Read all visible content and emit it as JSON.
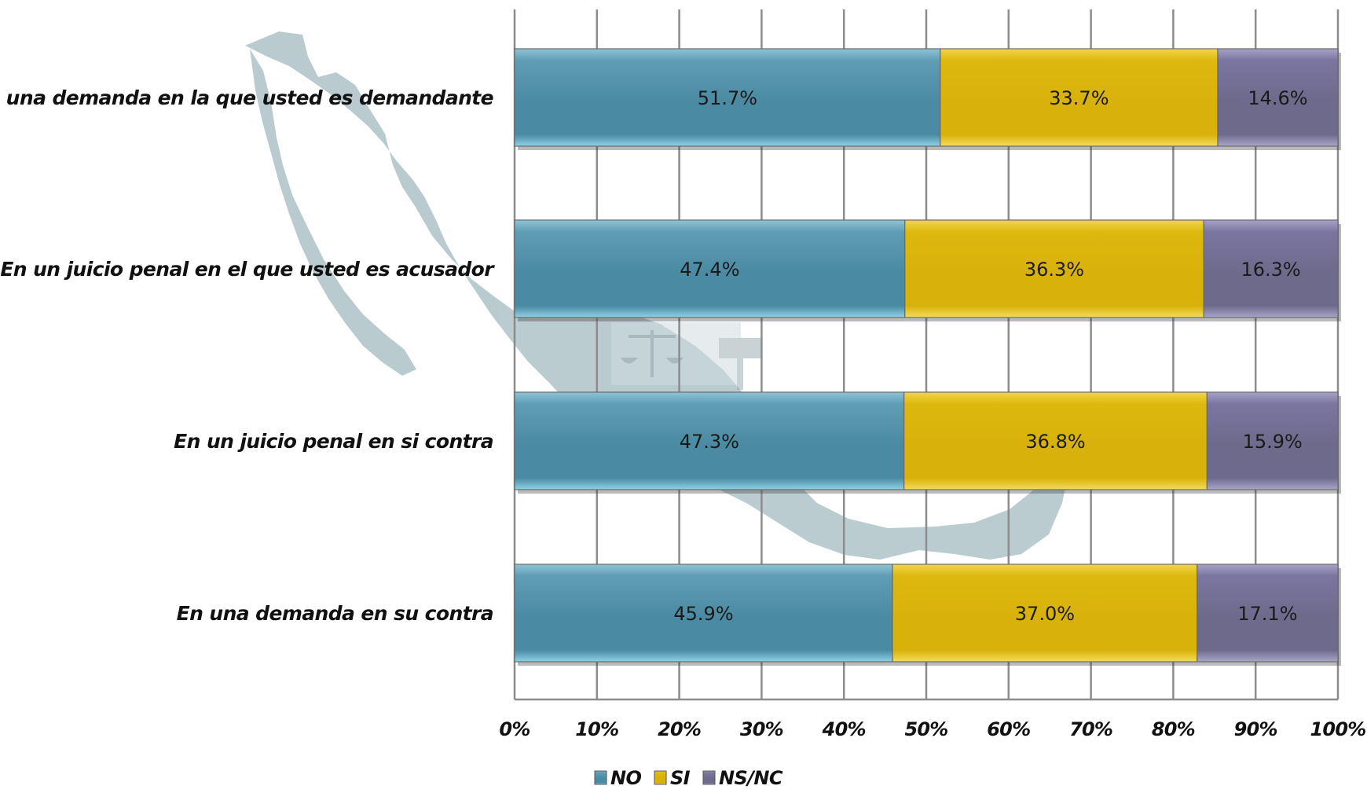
{
  "colors": {
    "NO": "#4a8aa2",
    "SI": "#d8b20a",
    "NS/NC": "#6e6a8c",
    "grid": "#8c8c8c",
    "map": "#aec3c8"
  },
  "chart_data": {
    "type": "bar",
    "orientation": "horizontal",
    "stacked": true,
    "categories": [
      "En una demanda en la que usted es demandante",
      "En un juicio penal en el que usted es acusador",
      "En un juicio penal en si contra",
      "En una demanda en su contra"
    ],
    "series": [
      {
        "name": "NO",
        "values": [
          51.7,
          47.4,
          47.3,
          45.9
        ],
        "labels": [
          "51.7%",
          "47.4%",
          "47.3%",
          "45.9%"
        ]
      },
      {
        "name": "SI",
        "values": [
          33.7,
          36.3,
          36.8,
          37.0
        ],
        "labels": [
          "33.7%",
          "36.3%",
          "36.8%",
          "37.0%"
        ]
      },
      {
        "name": "NS/NC",
        "values": [
          14.6,
          16.3,
          15.9,
          17.1
        ],
        "labels": [
          "14.6%",
          "16.3%",
          "15.9%",
          "17.1%"
        ]
      }
    ],
    "x_ticks": [
      "0%",
      "10%",
      "20%",
      "30%",
      "40%",
      "50%",
      "60%",
      "70%",
      "80%",
      "90%",
      "100%"
    ],
    "xlim": [
      0,
      100
    ],
    "grid": true,
    "legend": {
      "placement": "bottom",
      "entries": [
        "NO",
        "SI",
        "NS/NC"
      ]
    }
  }
}
